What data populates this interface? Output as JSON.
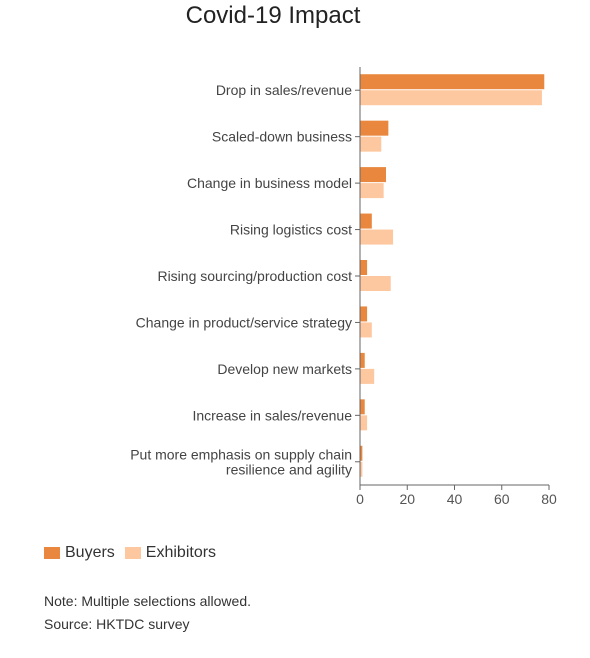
{
  "chart_data": {
    "type": "bar",
    "orientation": "horizontal",
    "title": "Covid-19 Impact",
    "categories": [
      [
        "Drop in sales/revenue"
      ],
      [
        "Scaled-down business"
      ],
      [
        "Change in business model"
      ],
      [
        "Rising logistics cost"
      ],
      [
        "Rising sourcing/production cost"
      ],
      [
        "Change in product/service strategy"
      ],
      [
        "Develop new markets"
      ],
      [
        "Increase in sales/revenue"
      ],
      [
        "Put more emphasis on supply chain",
        "resilience and agility"
      ]
    ],
    "series": [
      {
        "name": "Buyers",
        "color": "#e8873d",
        "values": [
          78,
          12,
          11,
          5,
          3,
          3,
          2,
          2,
          1
        ]
      },
      {
        "name": "Exhibitors",
        "color": "#fdc79f",
        "values": [
          77,
          9,
          10,
          14,
          13,
          5,
          6,
          3,
          1
        ]
      }
    ],
    "xlim": [
      0,
      80
    ],
    "xticks": [
      0,
      20,
      40,
      60,
      80
    ],
    "grid": false,
    "legend_position": "bottom-left"
  },
  "note": "Note: Multiple selections allowed.",
  "source": "Source: HKTDC survey"
}
